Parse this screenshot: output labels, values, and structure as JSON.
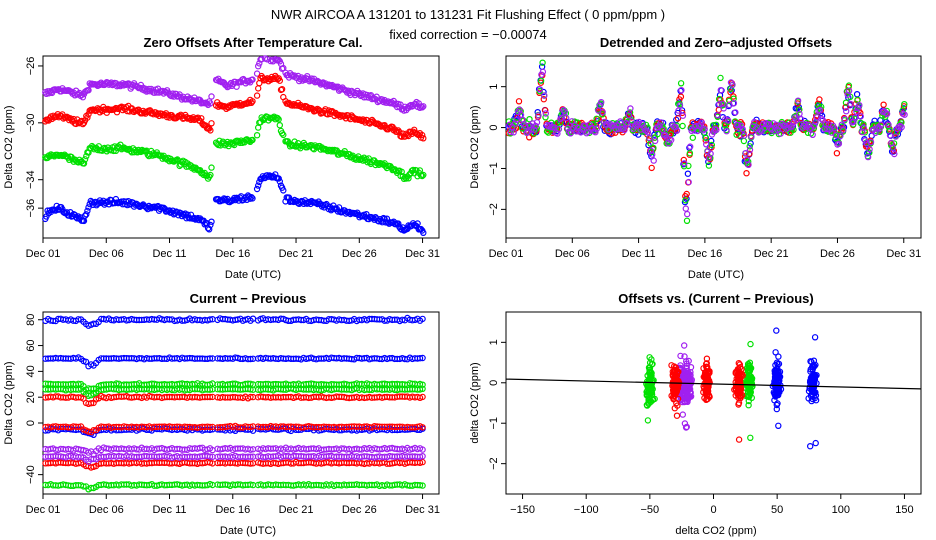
{
  "figure": {
    "title_line1": "NWR   AIRCOA A   131201 to 131231   Fit Flushing Effect ( 0 ppm/ppm )",
    "title_line2": "fixed correction = −0.00074"
  },
  "colors": {
    "blue": "#0000ff",
    "red": "#ff0000",
    "green": "#00e000",
    "purple": "#a020f0",
    "line": "#000000"
  },
  "chart_data": [
    {
      "id": "p1",
      "type": "scatter",
      "title": "Zero Offsets After Temperature Cal.",
      "xlabel": "Date (UTC)",
      "ylabel": "Delta CO2 (ppm)",
      "xlim": [
        0,
        31.3
      ],
      "ylim": [
        -38.1,
        -25.3
      ],
      "xticks": [
        0,
        5,
        10,
        15,
        20,
        25,
        30
      ],
      "xticklabels": [
        "Dec 01",
        "Dec 06",
        "Dec 11",
        "Dec 16",
        "Dec 21",
        "Dec 26",
        "Dec 31"
      ],
      "yticks": [
        -36,
        -34,
        -30,
        -26
      ],
      "yticklabels": [
        "−36",
        "−34",
        "−30",
        "−26"
      ],
      "series": [
        {
          "name": "purple",
          "color": "purple",
          "anchors": [
            [
              0,
              -28.0
            ],
            [
              0.7,
              -27.8
            ],
            [
              1.2,
              -27.6
            ],
            [
              3.2,
              -28.1
            ],
            [
              3.7,
              -27.3
            ],
            [
              6.4,
              -27.3
            ],
            [
              9.3,
              -27.8
            ],
            [
              12.4,
              -28.5
            ],
            [
              13.2,
              -28.7
            ],
            [
              13.7,
              -27.0
            ],
            [
              14.6,
              -27.4
            ],
            [
              15.8,
              -27.1
            ],
            [
              16.8,
              -26.9
            ],
            [
              17.2,
              -25.4
            ],
            [
              18.6,
              -25.5
            ],
            [
              19.2,
              -26.6
            ],
            [
              21.6,
              -27.1
            ],
            [
              24.6,
              -27.9
            ],
            [
              27.6,
              -28.6
            ],
            [
              28.6,
              -29.0
            ],
            [
              29.4,
              -28.6
            ],
            [
              30.1,
              -29.1
            ]
          ],
          "noise": 0.18
        },
        {
          "name": "red",
          "color": "red",
          "anchors": [
            [
              0,
              -29.9
            ],
            [
              0.7,
              -29.6
            ],
            [
              1.2,
              -29.5
            ],
            [
              3.2,
              -30.1
            ],
            [
              3.7,
              -29.1
            ],
            [
              6.4,
              -29.0
            ],
            [
              9.3,
              -29.4
            ],
            [
              12.4,
              -29.8
            ],
            [
              13.2,
              -30.5
            ],
            [
              13.7,
              -28.7
            ],
            [
              14.6,
              -28.9
            ],
            [
              15.8,
              -28.6
            ],
            [
              16.8,
              -28.5
            ],
            [
              17.2,
              -26.9
            ],
            [
              18.6,
              -26.9
            ],
            [
              19.2,
              -28.6
            ],
            [
              21.6,
              -29.1
            ],
            [
              24.6,
              -29.7
            ],
            [
              27.6,
              -30.4
            ],
            [
              28.6,
              -31.0
            ],
            [
              29.4,
              -30.6
            ],
            [
              30.1,
              -31.1
            ]
          ],
          "noise": 0.18
        },
        {
          "name": "green",
          "color": "green",
          "anchors": [
            [
              0,
              -32.6
            ],
            [
              0.7,
              -32.3
            ],
            [
              1.2,
              -32.2
            ],
            [
              3.2,
              -32.9
            ],
            [
              3.7,
              -31.8
            ],
            [
              6.4,
              -31.8
            ],
            [
              9.3,
              -32.3
            ],
            [
              12.4,
              -33.3
            ],
            [
              13.2,
              -33.9
            ],
            [
              13.7,
              -31.4
            ],
            [
              14.6,
              -31.5
            ],
            [
              15.8,
              -31.3
            ],
            [
              16.8,
              -31.2
            ],
            [
              17.2,
              -29.7
            ],
            [
              18.6,
              -29.7
            ],
            [
              19.2,
              -31.5
            ],
            [
              21.6,
              -31.7
            ],
            [
              24.6,
              -32.4
            ],
            [
              27.6,
              -33.1
            ],
            [
              28.6,
              -33.8
            ],
            [
              29.4,
              -33.4
            ],
            [
              30.1,
              -33.7
            ]
          ],
          "noise": 0.2
        },
        {
          "name": "blue",
          "color": "blue",
          "anchors": [
            [
              0,
              -36.6
            ],
            [
              0.7,
              -36.2
            ],
            [
              1.2,
              -36.0
            ],
            [
              3.2,
              -36.9
            ],
            [
              3.7,
              -35.6
            ],
            [
              6.4,
              -35.6
            ],
            [
              9.3,
              -36.0
            ],
            [
              12.4,
              -36.8
            ],
            [
              13.2,
              -37.4
            ],
            [
              13.7,
              -35.4
            ],
            [
              14.6,
              -35.5
            ],
            [
              15.8,
              -35.3
            ],
            [
              16.8,
              -35.2
            ],
            [
              17.2,
              -33.8
            ],
            [
              18.6,
              -33.8
            ],
            [
              19.2,
              -35.4
            ],
            [
              21.6,
              -35.7
            ],
            [
              24.6,
              -36.4
            ],
            [
              27.6,
              -37.0
            ],
            [
              28.6,
              -37.5
            ],
            [
              29.4,
              -37.1
            ],
            [
              30.1,
              -37.7
            ]
          ],
          "noise": 0.2
        }
      ]
    },
    {
      "id": "p2",
      "type": "scatter",
      "title": "Detrended and Zero−adjusted Offsets",
      "xlabel": "Date (UTC)",
      "ylabel": "Delta CO2 (ppm)",
      "xlim": [
        0,
        31.3
      ],
      "ylim": [
        -2.7,
        1.75
      ],
      "xticks": [
        0,
        5,
        10,
        15,
        20,
        25,
        30
      ],
      "xticklabels": [
        "Dec 01",
        "Dec 06",
        "Dec 11",
        "Dec 16",
        "Dec 21",
        "Dec 26",
        "Dec 31"
      ],
      "yticks": [
        -2,
        -1,
        0,
        1
      ],
      "yticklabels": [
        "−2",
        "−1",
        "0",
        "1"
      ],
      "base_noise": 0.15,
      "spikes": [
        [
          1.0,
          0.5
        ],
        [
          2.7,
          1.6
        ],
        [
          4.3,
          0.45
        ],
        [
          7.1,
          0.6
        ],
        [
          9.3,
          0.35
        ],
        [
          11.0,
          -0.8
        ],
        [
          12.2,
          -0.4
        ],
        [
          13.2,
          0.9
        ],
        [
          13.6,
          -2.3
        ],
        [
          15.3,
          -0.9
        ],
        [
          16.2,
          1.0
        ],
        [
          17.0,
          1.2
        ],
        [
          18.2,
          -1.1
        ],
        [
          22.0,
          0.5
        ],
        [
          23.6,
          0.6
        ],
        [
          25.0,
          -0.4
        ],
        [
          25.8,
          1.1
        ],
        [
          26.5,
          0.7
        ],
        [
          27.3,
          -0.7
        ],
        [
          28.5,
          0.45
        ],
        [
          29.2,
          -0.6
        ],
        [
          30.1,
          0.6
        ]
      ],
      "series": [
        {
          "name": "blue",
          "color": "blue"
        },
        {
          "name": "red",
          "color": "red"
        },
        {
          "name": "green",
          "color": "green"
        },
        {
          "name": "purple",
          "color": "purple"
        }
      ]
    },
    {
      "id": "p3",
      "type": "scatter",
      "title": "Current − Previous",
      "xlabel": "Date (UTC)",
      "ylabel": "Delta CO2 (ppm)",
      "xlim": [
        0,
        31.3
      ],
      "ylim": [
        -55,
        86
      ],
      "xticks": [
        0,
        5,
        10,
        15,
        20,
        25,
        30
      ],
      "xticklabels": [
        "Dec 01",
        "Dec 06",
        "Dec 11",
        "Dec 16",
        "Dec 21",
        "Dec 26",
        "Dec 31"
      ],
      "yticks": [
        -40,
        0,
        20,
        40,
        60,
        80
      ],
      "yticklabels": [
        "−40",
        "0",
        "20",
        "40",
        "60",
        "80"
      ],
      "series": [
        {
          "name": "blue",
          "color": "blue",
          "levels": [
            80,
            50,
            -5
          ]
        },
        {
          "name": "green",
          "color": "green",
          "levels": [
            30,
            26,
            -48
          ]
        },
        {
          "name": "red",
          "color": "red",
          "levels": [
            20,
            -3,
            -31
          ]
        },
        {
          "name": "purple",
          "color": "purple",
          "levels": [
            -20,
            -26
          ]
        }
      ]
    },
    {
      "id": "p4",
      "type": "scatter",
      "title": "Offsets vs. (Current − Previous)",
      "xlabel": "delta CO2 (ppm)",
      "ylabel": "delta CO2 (ppm)",
      "xlim": [
        -163,
        163
      ],
      "ylim": [
        -2.75,
        1.75
      ],
      "xticks": [
        -150,
        -100,
        -50,
        0,
        50,
        100,
        150
      ],
      "xticklabels": [
        "−150",
        "−100",
        "−50",
        "0",
        "50",
        "100",
        "150"
      ],
      "yticks": [
        -2,
        -1,
        0,
        1
      ],
      "yticklabels": [
        "−2",
        "−1",
        "0",
        "1"
      ],
      "fit_line": {
        "slope": -0.00074,
        "intercept": -0.03
      },
      "series": [
        {
          "name": "green",
          "color": "green",
          "clusters": [
            -50,
            28
          ]
        },
        {
          "name": "purple",
          "color": "purple",
          "clusters": [
            -25,
            -20
          ]
        },
        {
          "name": "red",
          "color": "red",
          "clusters": [
            -30,
            -5,
            20
          ]
        },
        {
          "name": "blue",
          "color": "blue",
          "clusters": [
            50,
            78
          ]
        }
      ]
    }
  ]
}
